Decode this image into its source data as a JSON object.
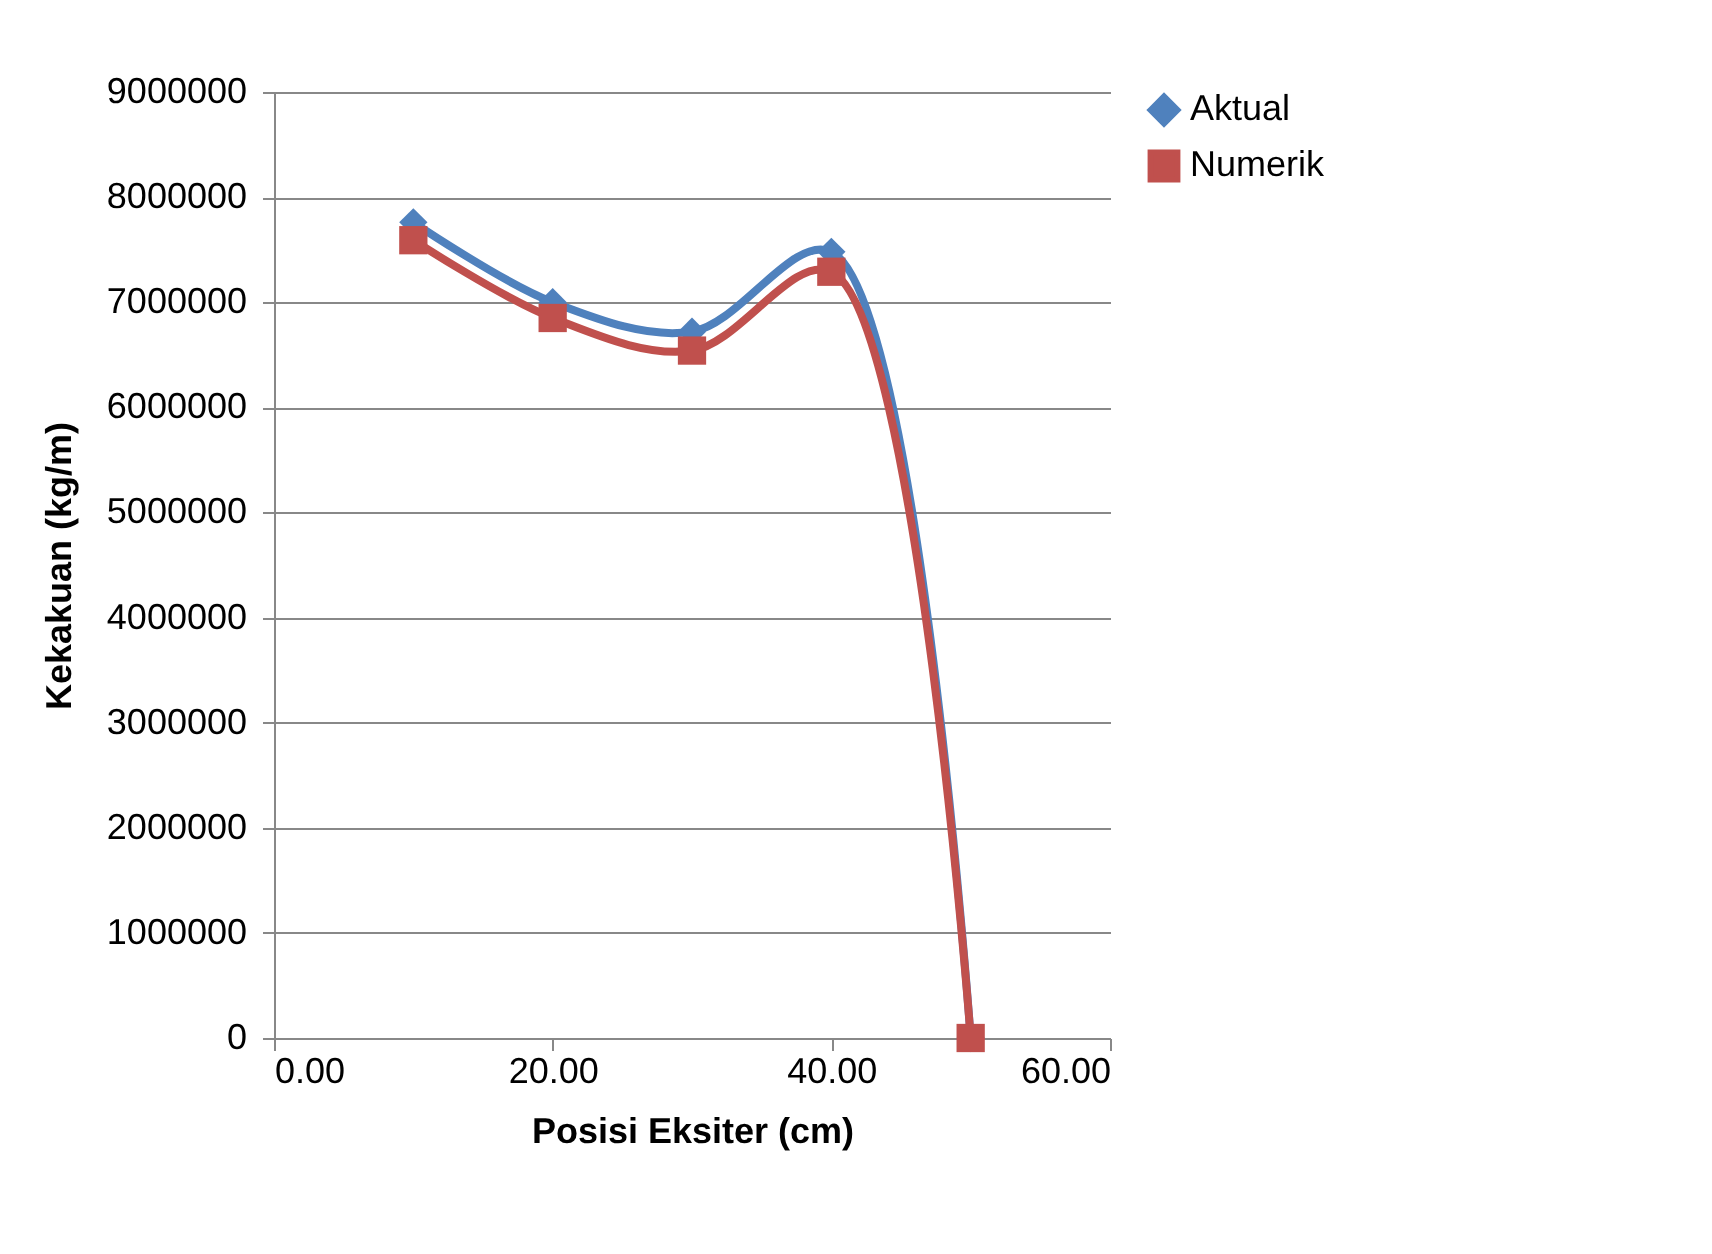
{
  "chart_data": {
    "type": "line",
    "xlabel": "Posisi Eksiter (cm)",
    "ylabel": "Kekakuan (kg/m)",
    "x": [
      10,
      20,
      30,
      40,
      50
    ],
    "series": [
      {
        "name": "Aktual",
        "color": "#4f81bd",
        "marker": "diamond",
        "values": [
          7760000,
          7000000,
          6720000,
          7480000,
          0
        ]
      },
      {
        "name": "Numerik",
        "color": "#c0504d",
        "marker": "square",
        "values": [
          7590000,
          6850000,
          6540000,
          7290000,
          0
        ]
      }
    ],
    "xlim": [
      0,
      60
    ],
    "xticks": [
      {
        "value": 0,
        "label": "0.00"
      },
      {
        "value": 20,
        "label": "20.00"
      },
      {
        "value": 40,
        "label": "40.00"
      },
      {
        "value": 60,
        "label": "60.00"
      }
    ],
    "ylim": [
      0,
      9000000
    ],
    "yticks": [
      0,
      1000000,
      2000000,
      3000000,
      4000000,
      5000000,
      6000000,
      7000000,
      8000000,
      9000000
    ],
    "grid": "y",
    "legend": "right",
    "line_style": "solid"
  }
}
